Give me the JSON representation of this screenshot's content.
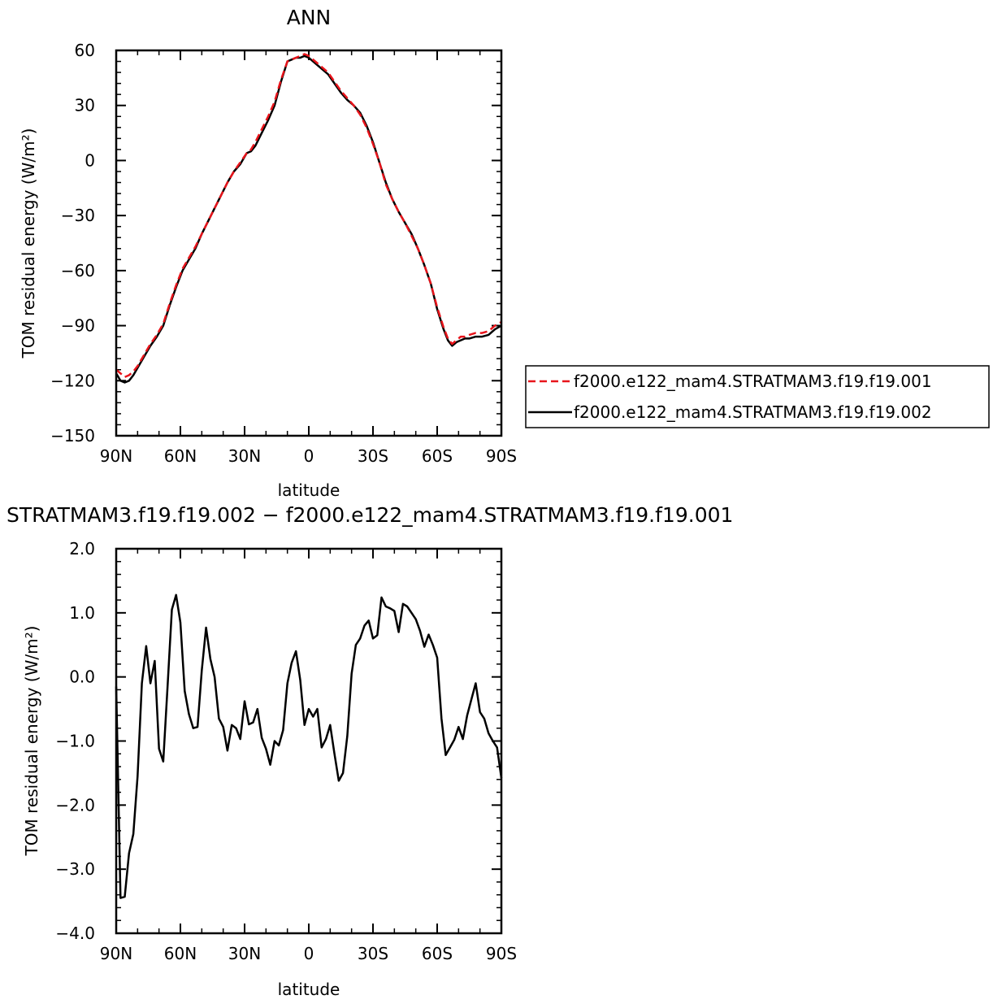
{
  "chart_data": [
    {
      "type": "line",
      "title": "ANN",
      "xlabel": "latitude",
      "ylabel": "TOM residual energy (W/m²)",
      "xlim": [
        -90,
        90
      ],
      "ylim": [
        -150,
        60
      ],
      "x_ticks": [
        -90,
        -60,
        -30,
        0,
        30,
        60,
        90
      ],
      "x_tick_labels": [
        "90N",
        "60N",
        "30N",
        "0",
        "30S",
        "60S",
        "90S"
      ],
      "y_ticks": [
        -150,
        -120,
        -90,
        -60,
        -30,
        0,
        30,
        60
      ],
      "y_tick_labels": [
        "−150",
        "−120",
        "−90",
        "−60",
        "−30",
        "0",
        "30",
        "60"
      ],
      "legend_position": "right",
      "series": [
        {
          "name": "f2000.e122_mam4.STRATMAM3.f19.f19.001",
          "color": "#e8141b",
          "dash": "dashed",
          "x": [
            -90,
            -88,
            -86,
            -84,
            -82,
            -80,
            -77,
            -74,
            -71,
            -68,
            -65,
            -62,
            -59,
            -56,
            -53,
            -50,
            -47,
            -44,
            -41,
            -38,
            -35,
            -32,
            -29,
            -27,
            -25,
            -22,
            -19,
            -16,
            -13,
            -10,
            -8,
            -6,
            -4,
            -2,
            0,
            3,
            6,
            9,
            12,
            15,
            18,
            21,
            24,
            27,
            30,
            33,
            36,
            39,
            42,
            45,
            48,
            51,
            54,
            57,
            60,
            63,
            65,
            67,
            69,
            71,
            73,
            75,
            78,
            81,
            84,
            87,
            90
          ],
          "values": [
            -114,
            -116,
            -118,
            -117,
            -115,
            -112,
            -106,
            -100,
            -95,
            -89,
            -78,
            -68,
            -59,
            -53,
            -47,
            -40,
            -33,
            -26,
            -19,
            -12,
            -6,
            -1,
            4,
            6,
            10,
            17,
            24,
            32,
            44,
            54,
            55,
            56,
            57,
            58,
            57,
            54,
            51,
            48,
            43,
            38,
            34,
            30,
            25,
            18,
            9,
            -1,
            -13,
            -21,
            -28,
            -34,
            -41,
            -48,
            -57,
            -67,
            -80,
            -91,
            -97,
            -100,
            -98,
            -96,
            -96,
            -95,
            -94,
            -94,
            -93,
            -90,
            -88
          ]
        },
        {
          "name": "f2000.e122_mam4.STRATMAM3.f19.f19.002",
          "color": "#000000",
          "dash": "solid",
          "x": [
            -90,
            -88,
            -86,
            -84,
            -82,
            -80,
            -77,
            -74,
            -71,
            -68,
            -65,
            -62,
            -59,
            -56,
            -53,
            -50,
            -47,
            -44,
            -41,
            -38,
            -35,
            -32,
            -29,
            -27,
            -25,
            -22,
            -19,
            -16,
            -13,
            -10,
            -8,
            -6,
            -4,
            -2,
            0,
            3,
            6,
            9,
            12,
            15,
            18,
            21,
            24,
            27,
            30,
            33,
            36,
            39,
            42,
            45,
            48,
            51,
            54,
            57,
            60,
            63,
            65,
            67,
            69,
            71,
            73,
            75,
            78,
            81,
            84,
            87,
            90
          ],
          "values": [
            -116,
            -120,
            -121,
            -120,
            -117,
            -113,
            -107,
            -101,
            -96,
            -90,
            -79,
            -69,
            -60,
            -54,
            -48,
            -40,
            -33,
            -26,
            -19,
            -12,
            -6,
            -2,
            4,
            5,
            8,
            15,
            22,
            30,
            43,
            54,
            55,
            56,
            56,
            57,
            56,
            53,
            50,
            47,
            42,
            37,
            33,
            30,
            26,
            19,
            10,
            -1,
            -12,
            -21,
            -28,
            -34,
            -40,
            -48,
            -57,
            -67,
            -81,
            -92,
            -98,
            -101,
            -99,
            -98,
            -97,
            -97,
            -96,
            -96,
            -95,
            -92,
            -90
          ]
        }
      ]
    },
    {
      "type": "line",
      "title": "STRATMAM3.f19.f19.002 − f2000.e122_mam4.STRATMAM3.f19.f19.001",
      "xlabel": "latitude",
      "ylabel": "TOM residual energy (W/m²)",
      "xlim": [
        -90,
        90
      ],
      "ylim": [
        -4.0,
        2.0
      ],
      "x_ticks": [
        -90,
        -60,
        -30,
        0,
        30,
        60,
        90
      ],
      "x_tick_labels": [
        "90N",
        "60N",
        "30N",
        "0",
        "30S",
        "60S",
        "90S"
      ],
      "y_ticks": [
        -4.0,
        -3.0,
        -2.0,
        -1.0,
        0.0,
        1.0,
        2.0
      ],
      "y_tick_labels": [
        "−4.0",
        "−3.0",
        "−2.0",
        "−1.0",
        "0.0",
        "1.0",
        "2.0"
      ],
      "series": [
        {
          "color": "#000000",
          "x": [
            -90,
            -88,
            -86,
            -84,
            -82,
            -80,
            -78,
            -76,
            -74,
            -72,
            -70,
            -68,
            -66,
            -64,
            -62,
            -60,
            -58,
            -56,
            -54,
            -52,
            -50,
            -48,
            -46,
            -44,
            -42,
            -40,
            -38,
            -36,
            -34,
            -32,
            -30,
            -28,
            -26,
            -24,
            -22,
            -20,
            -18,
            -16,
            -14,
            -12,
            -10,
            -8,
            -6,
            -4,
            -2,
            0,
            2,
            4,
            6,
            8,
            10,
            12,
            14,
            16,
            18,
            20,
            22,
            24,
            26,
            28,
            30,
            32,
            34,
            36,
            38,
            40,
            42,
            44,
            46,
            48,
            50,
            52,
            54,
            56,
            58,
            60,
            62,
            64,
            66,
            68,
            70,
            72,
            74,
            76,
            78,
            80,
            82,
            84,
            86,
            88,
            90
          ],
          "values": [
            -0.15,
            -3.45,
            -3.43,
            -2.75,
            -2.45,
            -1.55,
            -0.1,
            0.48,
            -0.1,
            0.25,
            -1.12,
            -1.32,
            -0.15,
            1.05,
            1.28,
            0.85,
            -0.22,
            -0.58,
            -0.8,
            -0.78,
            0.1,
            0.77,
            0.28,
            0.0,
            -0.65,
            -0.78,
            -1.15,
            -0.75,
            -0.8,
            -0.97,
            -0.38,
            -0.74,
            -0.71,
            -0.5,
            -0.95,
            -1.12,
            -1.37,
            -1.0,
            -1.07,
            -0.83,
            -0.1,
            0.22,
            0.4,
            -0.05,
            -0.75,
            -0.5,
            -0.62,
            -0.5,
            -1.1,
            -0.97,
            -0.75,
            -1.2,
            -1.62,
            -1.5,
            -0.92,
            0.05,
            0.5,
            0.6,
            0.8,
            0.88,
            0.6,
            0.65,
            1.24,
            1.1,
            1.07,
            1.03,
            0.7,
            1.14,
            1.1,
            1.0,
            0.9,
            0.72,
            0.47,
            0.66,
            0.5,
            0.3,
            -0.65,
            -1.22,
            -1.1,
            -0.98,
            -0.78,
            -0.97,
            -0.6,
            -0.35,
            -0.1,
            -0.55,
            -0.65,
            -0.88,
            -1.0,
            -1.1,
            -1.58
          ]
        }
      ]
    }
  ]
}
